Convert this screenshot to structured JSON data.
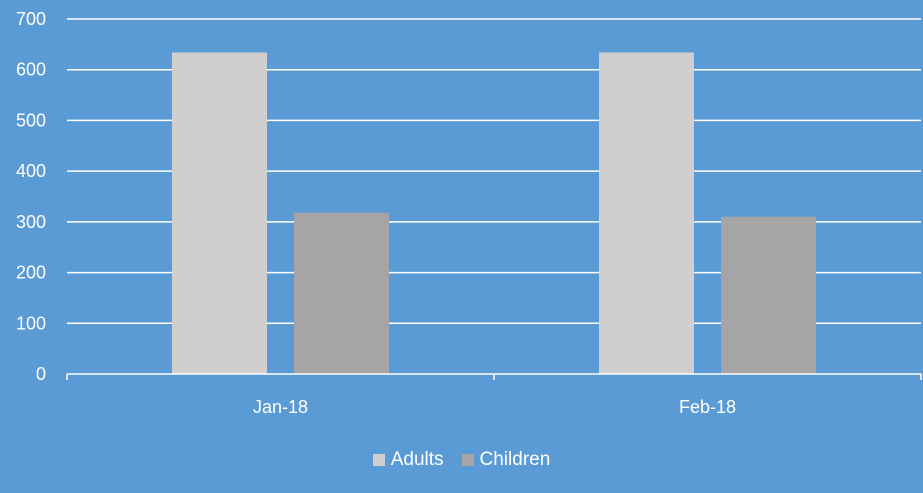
{
  "chart_data": {
    "type": "bar",
    "categories": [
      "Jan-18",
      "Feb-18"
    ],
    "series": [
      {
        "name": "Adults",
        "values": [
          634,
          634
        ],
        "color": "#d0cece"
      },
      {
        "name": "Children",
        "values": [
          318,
          310
        ],
        "color": "#a5a5a5"
      }
    ],
    "ylim": [
      0,
      700
    ],
    "yticks": [
      0,
      100,
      200,
      300,
      400,
      500,
      600,
      700
    ],
    "ytick_labels": [
      "0",
      "100",
      "200",
      "300",
      "400",
      "500",
      "600",
      "700"
    ],
    "grid": true,
    "legend_position": "bottom",
    "background_color": "#5b9bd5",
    "gridline_color": "#ffffff",
    "text_color": "#ffffff"
  },
  "legend": {
    "items": [
      {
        "label": "Adults",
        "color": "#d0cece"
      },
      {
        "label": "Children",
        "color": "#a5a5a5"
      }
    ]
  }
}
